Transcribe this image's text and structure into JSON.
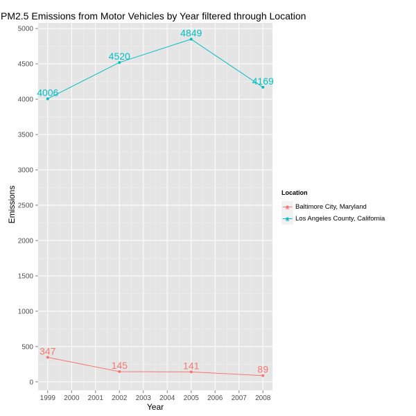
{
  "chart_data": {
    "type": "line",
    "title": "PM2.5 Emissions from Motor Vehicles by Year filtered through Location",
    "xlabel": "Year",
    "ylabel": "Emissions",
    "x": [
      1999,
      2002,
      2005,
      2008
    ],
    "x_ticks": [
      "1999",
      "2000",
      "2001",
      "2002",
      "2003",
      "2004",
      "2005",
      "2006",
      "2007",
      "2008"
    ],
    "y_ticks": [
      "0",
      "500",
      "1000",
      "1500",
      "2000",
      "2500",
      "3000",
      "3500",
      "4000",
      "4500",
      "5000"
    ],
    "xlim": [
      1998.6,
      2008.4
    ],
    "ylim": [
      -120,
      5080
    ],
    "grid": true,
    "legend_position": "right",
    "legend_title": "Location",
    "series": [
      {
        "name": "Baltimore City, Maryland",
        "color": "#F8766D",
        "values": [
          347,
          145,
          141,
          89
        ],
        "labels": [
          "347",
          "145",
          "141",
          "89"
        ]
      },
      {
        "name": "Los Angeles County, California",
        "color": "#00BFC4",
        "values": [
          4006,
          4520,
          4849,
          4169
        ],
        "labels": [
          "4006",
          "4520",
          "4849",
          "4169"
        ]
      }
    ],
    "panel_background": "#E5E5E5",
    "grid_color": "#FFFFFF"
  }
}
